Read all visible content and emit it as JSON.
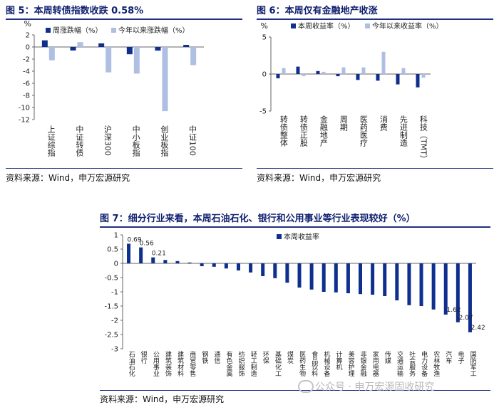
{
  "fig5": {
    "title": "图 5：本周转债指数收跌 0.58%",
    "source": "资料来源：Wind，申万宏源研究",
    "chart_data": {
      "type": "bar",
      "unit_label": "%",
      "categories": [
        "上证综指",
        "中证转债",
        "沪深300",
        "中小板指",
        "创业板指",
        "中证100"
      ],
      "series": [
        {
          "name": "周涨跌幅（%）",
          "color": "#0f2f8f",
          "values": [
            1.1,
            -0.58,
            0.6,
            -1.2,
            -0.6,
            0.35
          ]
        },
        {
          "name": "今年以来涨跌幅（%）",
          "color": "#aebfe3",
          "values": [
            -2.2,
            0.8,
            -4.2,
            -4.4,
            -10.6,
            -3.0
          ]
        }
      ],
      "ylim": [
        -12,
        2
      ],
      "yticks": [
        -12,
        -10,
        -8,
        -6,
        -4,
        -2,
        0,
        2
      ],
      "legend_position": "top"
    }
  },
  "fig6": {
    "title": "图 6：本周仅有金融地产收涨",
    "source": "资料来源：Wind，申万宏源研究",
    "chart_data": {
      "type": "bar",
      "unit_label": "%",
      "categories": [
        "转债整体",
        "转债正股",
        "金融地产",
        "周期",
        "医药医疗",
        "消费",
        "先进制造",
        "科技（TMT）"
      ],
      "series": [
        {
          "name": "本周收益率（%）",
          "color": "#0f2f8f",
          "values": [
            -0.58,
            1.0,
            0.4,
            -0.3,
            -0.8,
            -0.9,
            -1.4,
            -1.8
          ]
        },
        {
          "name": "今年以来收益率（%）",
          "color": "#aebfe3",
          "values": [
            0.8,
            -0.3,
            0.3,
            0.9,
            0.9,
            3.0,
            0.8,
            -0.5
          ]
        }
      ],
      "ylim": [
        -5,
        5
      ],
      "yticks": [
        -5,
        0,
        5
      ],
      "legend_position": "top"
    }
  },
  "fig7": {
    "title": "图 7：细分行业来看，本周石油石化、银行和公用事业等行业表现较好（%）",
    "source": "资料来源：Wind，申万宏源研究",
    "chart_data": {
      "type": "bar",
      "categories": [
        "石油石化",
        "银行",
        "公用事业",
        "建筑装饰",
        "建筑材料",
        "商贸零售",
        "钢铁",
        "通信",
        "有色金属",
        "纺织服饰",
        "轻工制造",
        "环保",
        "基础化工",
        "煤炭",
        "医药生物",
        "食品饮料",
        "机械设备",
        "计算机",
        "美容护理",
        "非银金融",
        "家用电器",
        "传媒",
        "交通运输",
        "社会服务",
        "电力设备",
        "农林牧渔",
        "汽车",
        "电子",
        "国防军工"
      ],
      "series": [
        {
          "name": "本周收益率",
          "color": "#0f2f8f",
          "values": [
            0.69,
            0.56,
            0.21,
            0.12,
            0.08,
            0.03,
            -0.1,
            -0.12,
            -0.18,
            -0.25,
            -0.32,
            -0.45,
            -0.52,
            -0.68,
            -0.85,
            -0.92,
            -1.0,
            -1.02,
            -1.05,
            -1.08,
            -1.1,
            -1.15,
            -1.3,
            -1.47,
            -1.5,
            -1.62,
            -1.8,
            -2.07,
            -2.42
          ]
        }
      ],
      "data_labels": [
        "0.69",
        "0.56",
        "0.21",
        "-1.62",
        "-2.07",
        "-2.42"
      ],
      "ylim": [
        -3,
        1
      ],
      "yticks": [
        -3,
        -2.5,
        -2,
        -1.5,
        -1,
        -0.5,
        0,
        0.5,
        1
      ],
      "legend_position": "top-left"
    }
  },
  "watermark": {
    "text": "公众号 · 申万宏源固收研究",
    "icon": "wechat-icon"
  }
}
